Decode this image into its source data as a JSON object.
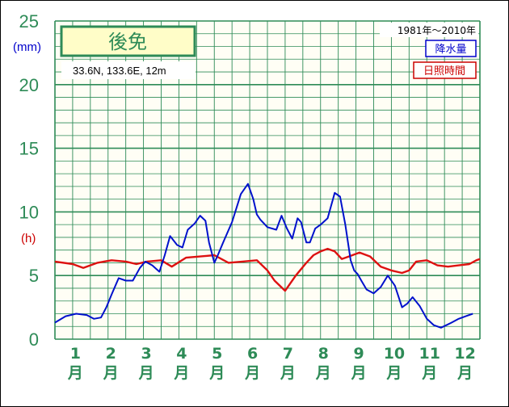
{
  "chart_data": {
    "type": "line",
    "title": "後免",
    "location": "33.6N,  133.6E,  12m",
    "period": "1981年〜2010年",
    "y_unit_left": "(mm)",
    "y_unit_right": "(h)",
    "ylim": [
      0,
      25
    ],
    "yticks": [
      "0",
      "5",
      "10",
      "15",
      "20",
      "25"
    ],
    "months": [
      "1",
      "2",
      "3",
      "4",
      "5",
      "6",
      "7",
      "8",
      "9",
      "10",
      "11",
      "12"
    ],
    "month_suffix": "月",
    "grid": true,
    "legend_position": "top-right",
    "series": [
      {
        "name": "降水量",
        "color": "#0000cc",
        "x": [
          0.0,
          0.3,
          0.6,
          0.9,
          1.1,
          1.3,
          1.45,
          1.6,
          1.8,
          2.0,
          2.2,
          2.4,
          2.55,
          2.75,
          2.95,
          3.1,
          3.25,
          3.45,
          3.6,
          3.75,
          3.95,
          4.1,
          4.25,
          4.35,
          4.5,
          4.6,
          4.75,
          5.0,
          5.25,
          5.45,
          5.6,
          5.7,
          5.8,
          6.0,
          6.25,
          6.4,
          6.55,
          6.7,
          6.85,
          6.95,
          7.1,
          7.2,
          7.35,
          7.5,
          7.7,
          7.9,
          8.05,
          8.2,
          8.35,
          8.45,
          8.55,
          8.65,
          8.8,
          9.0,
          9.2,
          9.4,
          9.6,
          9.8,
          9.95,
          10.1,
          10.3,
          10.5,
          10.7,
          10.9,
          11.05,
          11.2,
          11.4,
          11.6,
          11.8
        ],
        "y": [
          1.3,
          1.8,
          2.0,
          1.9,
          1.6,
          1.7,
          2.5,
          3.5,
          4.8,
          4.6,
          4.6,
          5.6,
          6.1,
          5.8,
          5.3,
          6.6,
          8.1,
          7.4,
          7.2,
          8.6,
          9.1,
          9.7,
          9.3,
          7.6,
          6.0,
          6.6,
          7.6,
          9.2,
          11.4,
          12.2,
          11.0,
          9.8,
          9.4,
          8.8,
          8.6,
          9.7,
          8.7,
          7.9,
          9.5,
          9.2,
          7.6,
          7.6,
          8.7,
          9.0,
          9.5,
          11.5,
          11.2,
          9.0,
          6.2,
          5.4,
          5.1,
          4.6,
          3.9,
          3.6,
          4.1,
          5.0,
          4.2,
          2.5,
          2.8,
          3.3,
          2.6,
          1.6,
          1.1,
          0.9,
          1.1,
          1.3,
          1.6,
          1.8,
          2.0
        ],
        "values_mm": "x in months (0 = Jan start, 12 = Dec end)"
      },
      {
        "name": "日照時間",
        "color": "#cc0000",
        "x": [
          0.0,
          0.5,
          0.8,
          1.2,
          1.6,
          2.0,
          2.3,
          2.6,
          3.0,
          3.3,
          3.7,
          4.1,
          4.5,
          4.9,
          5.3,
          5.7,
          6.0,
          6.2,
          6.5,
          6.8,
          7.1,
          7.3,
          7.5,
          7.7,
          7.9,
          8.1,
          8.3,
          8.6,
          8.9,
          9.2,
          9.5,
          9.8,
          10.0,
          10.2,
          10.5,
          10.8,
          11.1,
          11.4,
          11.7,
          11.9,
          12.0
        ],
        "y": [
          6.1,
          5.9,
          5.6,
          6.0,
          6.2,
          6.1,
          5.9,
          6.1,
          6.2,
          5.7,
          6.4,
          6.5,
          6.6,
          6.0,
          6.1,
          6.2,
          5.4,
          4.6,
          3.8,
          5.0,
          6.0,
          6.6,
          6.9,
          7.1,
          6.9,
          6.3,
          6.5,
          6.8,
          6.5,
          5.7,
          5.4,
          5.2,
          5.4,
          6.1,
          6.2,
          5.8,
          5.7,
          5.8,
          5.9,
          6.2,
          6.3
        ]
      }
    ]
  }
}
